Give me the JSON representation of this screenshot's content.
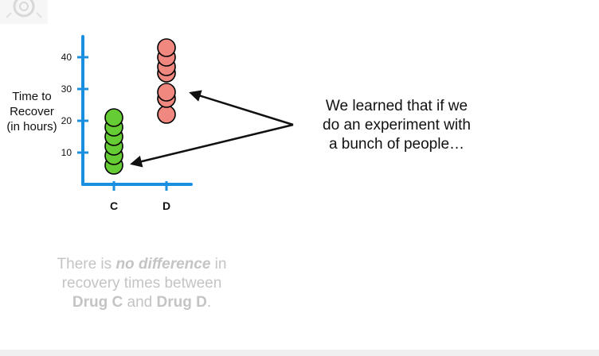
{
  "chart_data": {
    "type": "scatter",
    "title": "",
    "ylabel_lines": [
      "Time to",
      "Recover",
      "(in hours)"
    ],
    "categories": [
      "C",
      "D"
    ],
    "yticks": [
      10,
      20,
      30,
      40
    ],
    "ylim": [
      0,
      45
    ],
    "series": [
      {
        "category": "C",
        "color": "#66cc33",
        "values": [
          6,
          9,
          12,
          15,
          18,
          21
        ]
      },
      {
        "category": "D",
        "color": "#f08880",
        "values": [
          22,
          27,
          29,
          35,
          37,
          40,
          43
        ]
      }
    ],
    "grid": false
  },
  "annotation": {
    "lines": [
      "We learned that if we",
      "do an experiment with",
      "a bunch of people…"
    ]
  },
  "statement": {
    "p1": "There is ",
    "p2": "no difference",
    "p3": " in recovery times between ",
    "p4": "Drug C",
    "p5": " and ",
    "p6": "Drug D",
    "p7": "."
  },
  "colors": {
    "axis": "#1a8fe0",
    "arrow": "#111111",
    "statement_text": "#c4c4c4"
  },
  "icons": {
    "corner_logo": "gear-logo-icon"
  }
}
